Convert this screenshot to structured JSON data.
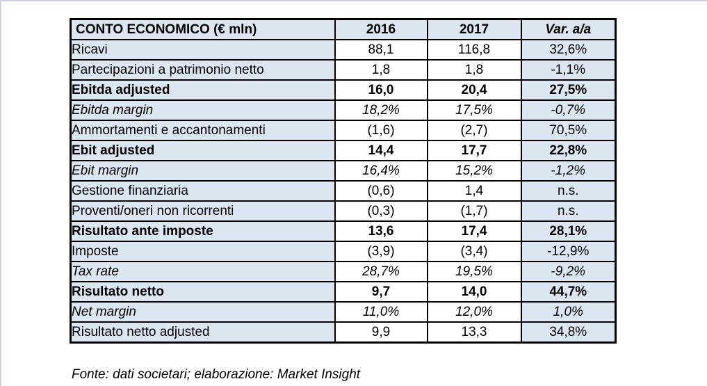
{
  "colors": {
    "cell_blue": "#DCE6F1",
    "cell_white": "#FFFFFF",
    "grid_border": "#000000",
    "frame_line": "#CCD3E0"
  },
  "table": {
    "columns": [
      {
        "label": "CONTO ECONOMICO (€ mln)",
        "style": "bold",
        "align": "left"
      },
      {
        "label": "2016",
        "style": "bold",
        "align": "center"
      },
      {
        "label": "2017",
        "style": "bold",
        "align": "center"
      },
      {
        "label": "Var. a/a",
        "style": "bold-italic",
        "align": "center"
      }
    ],
    "rows": [
      {
        "label": "Ricavi",
        "y2016": "88,1",
        "y2017": "116,8",
        "var": "32,6%",
        "style": "regular"
      },
      {
        "label": "Partecipazioni a patrimonio netto",
        "y2016": "1,8",
        "y2017": "1,8",
        "var": "-1,1%",
        "style": "regular"
      },
      {
        "label": "Ebitda adjusted",
        "y2016": "16,0",
        "y2017": "20,4",
        "var": "27,5%",
        "style": "bold"
      },
      {
        "label": "Ebitda margin",
        "y2016": "18,2%",
        "y2017": "17,5%",
        "var": "-0,7%",
        "style": "italic"
      },
      {
        "label": "Ammortamenti e accantonamenti",
        "y2016": "(1,6)",
        "y2017": "(2,7)",
        "var": "70,5%",
        "style": "regular"
      },
      {
        "label": "Ebit adjusted",
        "y2016": "14,4",
        "y2017": "17,7",
        "var": "22,8%",
        "style": "bold"
      },
      {
        "label": "Ebit margin",
        "y2016": "16,4%",
        "y2017": "15,2%",
        "var": "-1,2%",
        "style": "italic"
      },
      {
        "label": "Gestione finanziaria",
        "y2016": "(0,6)",
        "y2017": "1,4",
        "var": "n.s.",
        "style": "regular"
      },
      {
        "label": "Proventi/oneri non ricorrenti",
        "y2016": "(0,3)",
        "y2017": "(1,7)",
        "var": "n.s.",
        "style": "regular"
      },
      {
        "label": "Risultato ante imposte",
        "y2016": "13,6",
        "y2017": "17,4",
        "var": "28,1%",
        "style": "bold"
      },
      {
        "label": "Imposte",
        "y2016": "(3,9)",
        "y2017": "(3,4)",
        "var": "-12,9%",
        "style": "regular"
      },
      {
        "label": "Tax rate",
        "y2016": "28,7%",
        "y2017": "19,5%",
        "var": "-9,2%",
        "style": "italic"
      },
      {
        "label": "Risultato netto",
        "y2016": "9,7",
        "y2017": "14,0",
        "var": "44,7%",
        "style": "bold"
      },
      {
        "label": "Net margin",
        "y2016": "11,0%",
        "y2017": "12,0%",
        "var": "1,0%",
        "style": "italic"
      },
      {
        "label": "Risultato netto adjusted",
        "y2016": "9,9",
        "y2017": "13,3",
        "var": "34,8%",
        "style": "regular"
      }
    ]
  },
  "footer": {
    "source_note": "Fonte: dati societari; elaborazione: Market Insight"
  }
}
